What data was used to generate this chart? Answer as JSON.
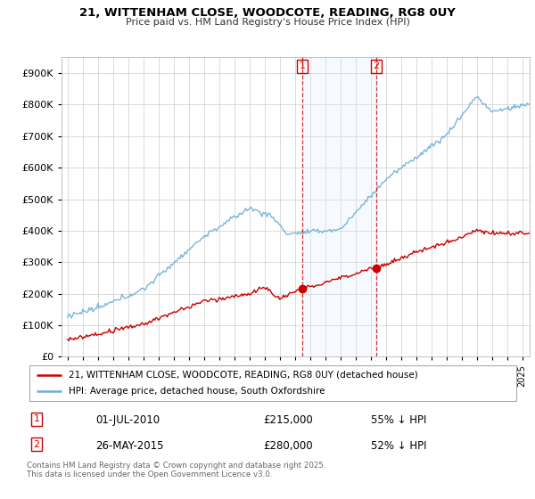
{
  "title": "21, WITTENHAM CLOSE, WOODCOTE, READING, RG8 0UY",
  "subtitle": "Price paid vs. HM Land Registry's House Price Index (HPI)",
  "legend_line1": "21, WITTENHAM CLOSE, WOODCOTE, READING, RG8 0UY (detached house)",
  "legend_line2": "HPI: Average price, detached house, South Oxfordshire",
  "footnote": "Contains HM Land Registry data © Crown copyright and database right 2025.\nThis data is licensed under the Open Government Licence v3.0.",
  "transaction1_label": "1",
  "transaction1_date": "01-JUL-2010",
  "transaction1_price": "£215,000",
  "transaction1_hpi": "55% ↓ HPI",
  "transaction2_label": "2",
  "transaction2_date": "26-MAY-2015",
  "transaction2_price": "£280,000",
  "transaction2_hpi": "52% ↓ HPI",
  "hpi_color": "#6baed6",
  "price_color": "#cc0000",
  "shade_color": "#ddeeff",
  "marker1_date": 2010.5,
  "marker1_price": 215000,
  "marker2_date": 2015.37,
  "marker2_price": 280000,
  "vline1_x": 2010.5,
  "vline2_x": 2015.37,
  "ylim": [
    0,
    950000
  ],
  "yticks": [
    0,
    100000,
    200000,
    300000,
    400000,
    500000,
    600000,
    700000,
    800000,
    900000
  ],
  "xlim_start": 1994.6,
  "xlim_end": 2025.5,
  "background_color": "#ffffff"
}
